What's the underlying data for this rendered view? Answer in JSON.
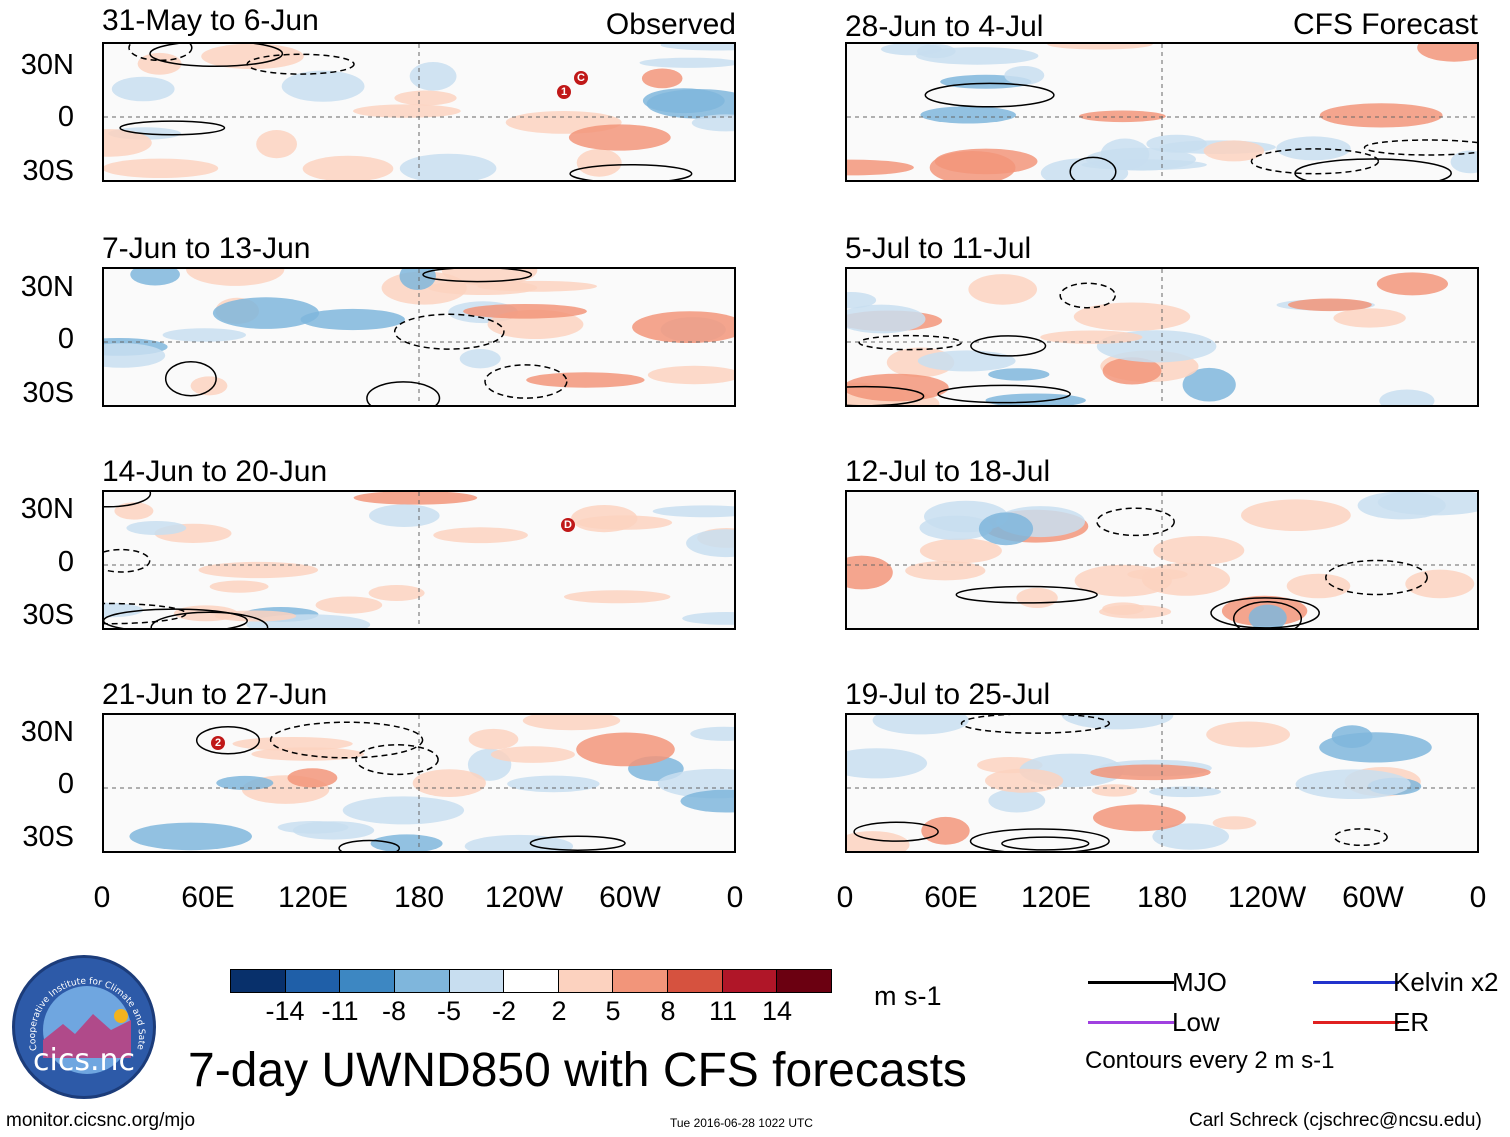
{
  "observed_label": "Observed",
  "forecast_label": "CFS Forecast",
  "lat_ticks": [
    "30N",
    "0",
    "30S"
  ],
  "lon_ticks": [
    "0",
    "60E",
    "120E",
    "180",
    "120W",
    "60W",
    "0"
  ],
  "panels_left": [
    {
      "title": "31-May to 6-Jun"
    },
    {
      "title": "7-Jun to 13-Jun"
    },
    {
      "title": "14-Jun to 20-Jun"
    },
    {
      "title": "21-Jun to 27-Jun"
    }
  ],
  "panels_right": [
    {
      "title": "28-Jun to 4-Jul"
    },
    {
      "title": "5-Jul to 11-Jul"
    },
    {
      "title": "12-Jul to 18-Jul"
    },
    {
      "title": "19-Jul to 25-Jul"
    }
  ],
  "storm_markers": [
    {
      "panel": 0,
      "label": "1"
    },
    {
      "panel": 0,
      "label": "C"
    },
    {
      "panel": 2,
      "label": "D"
    },
    {
      "panel": 3,
      "label": "2"
    }
  ],
  "colorbar": {
    "ticks": [
      "-14",
      "-11",
      "-8",
      "-5",
      "-2",
      "2",
      "5",
      "8",
      "11",
      "14"
    ],
    "colors": [
      "#08306b",
      "#1f5fa8",
      "#3d87c2",
      "#7fb6dc",
      "#c8def0",
      "#ffffff",
      "#fcd2bf",
      "#f2957a",
      "#d6523f",
      "#b01628",
      "#6b0011"
    ],
    "units": "m s-1"
  },
  "legend": {
    "items": [
      {
        "label": "MJO",
        "color": "#000000"
      },
      {
        "label": "Kelvin x2",
        "color": "#2233cc"
      },
      {
        "label": "Low",
        "color": "#a040e0"
      },
      {
        "label": "ER",
        "color": "#e02020"
      }
    ],
    "note": "Contours every 2 m s-1"
  },
  "main_title": "7-day UWND850 with CFS forecasts",
  "logo_text": "cics.nc",
  "logo_ring_text": "Cooperative Institute for Climate and Satellites",
  "footer": {
    "url": "monitor.cicsnc.org/mjo",
    "timestamp": "Tue 2016-06-28 1022 UTC",
    "author": "Carl Schreck (cjschrec@ncsu.edu)"
  }
}
